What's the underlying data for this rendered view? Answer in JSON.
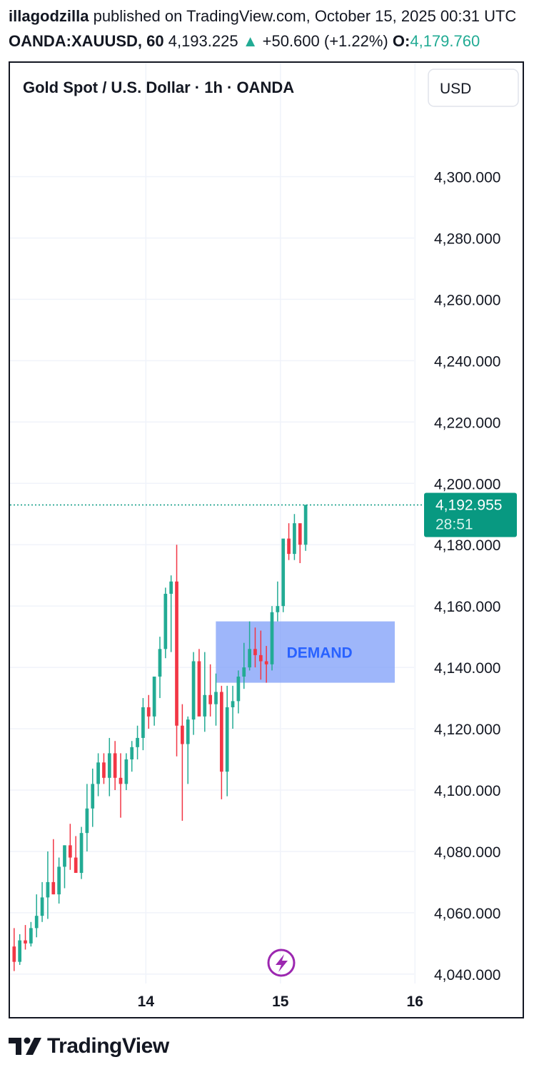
{
  "header": {
    "author": "illagodzilla",
    "published_text": " published on TradingView.com, October 15, 2025 00:31 UTC",
    "symbol": "OANDA:XAUUSD, 60",
    "price": "4,193.225",
    "change_arrow": "▲",
    "change": "+50.600 (+1.22%)",
    "open_label": "O:",
    "open_value": "4,179.760"
  },
  "chart_data": {
    "type": "candlestick",
    "title": "Gold Spot / U.S. Dollar · 1h · OANDA",
    "currency_button": "USD",
    "y_ticks": [
      "4,300.000",
      "4,280.000",
      "4,260.000",
      "4,240.000",
      "4,220.000",
      "4,200.000",
      "4,180.000",
      "4,160.000",
      "4,140.000",
      "4,120.000",
      "4,100.000",
      "4,080.000",
      "4,060.000",
      "4,040.000"
    ],
    "y_tick_values": [
      4300,
      4280,
      4260,
      4240,
      4220,
      4200,
      4180,
      4160,
      4140,
      4120,
      4100,
      4080,
      4060,
      4040
    ],
    "x_ticks": [
      "14",
      "15",
      "16"
    ],
    "x_tick_times": [
      14,
      15,
      16
    ],
    "ylim": [
      4026,
      4332
    ],
    "xlim": [
      12.99,
      16.8
    ],
    "last_price": {
      "value": 4192.955,
      "label": "4,192.955",
      "countdown": "28:51"
    },
    "zone": {
      "label": "DEMAND",
      "from_time": 14.52,
      "to_time": 15.85,
      "top": 4155,
      "bottom": 4135
    },
    "colors": {
      "up": "#22ab94",
      "down": "#f23645",
      "zone": "#7d9ef8",
      "zone_text": "#2962ff",
      "grid": "#f0f3fa",
      "last_price": "#089981"
    },
    "candles_start_day": 13.0,
    "candle_hours": 1,
    "candles": [
      [
        4049,
        4055,
        4041,
        4044
      ],
      [
        4044,
        4053,
        4043,
        4051
      ],
      [
        4051,
        4056,
        4048,
        4050
      ],
      [
        4050,
        4057,
        4049,
        4055
      ],
      [
        4055,
        4066,
        4052,
        4059
      ],
      [
        4059,
        4070,
        4057,
        4065
      ],
      [
        4065,
        4080,
        4058,
        4070
      ],
      [
        4070,
        4084,
        4066,
        4066
      ],
      [
        4066,
        4078,
        4063,
        4075
      ],
      [
        4075,
        4082,
        4068,
        4082
      ],
      [
        4082,
        4089,
        4074,
        4078
      ],
      [
        4078,
        4085,
        4073,
        4073
      ],
      [
        4073,
        4088,
        4071,
        4086
      ],
      [
        4086,
        4102,
        4080,
        4094
      ],
      [
        4094,
        4107,
        4088,
        4102
      ],
      [
        4102,
        4112,
        4098,
        4109
      ],
      [
        4109,
        4112,
        4102,
        4104
      ],
      [
        4104,
        4117,
        4098,
        4112
      ],
      [
        4112,
        4116,
        4100,
        4104
      ],
      [
        4104,
        4112,
        4091,
        4102
      ],
      [
        4102,
        4112,
        4100,
        4110
      ],
      [
        4110,
        4116,
        4106,
        4114
      ],
      [
        4114,
        4121,
        4110,
        4117
      ],
      [
        4117,
        4130,
        4113,
        4127
      ],
      [
        4127,
        4131,
        4120,
        4124
      ],
      [
        4124,
        4135,
        4121,
        4137
      ],
      [
        4137,
        4150,
        4130,
        4146
      ],
      [
        4146,
        4166,
        4143,
        4164
      ],
      [
        4164,
        4170,
        4145,
        4168
      ],
      [
        4168,
        4180,
        4111,
        4121
      ],
      [
        4121,
        4128,
        4090,
        4115
      ],
      [
        4115,
        4124,
        4102,
        4123
      ],
      [
        4123,
        4145,
        4118,
        4142
      ],
      [
        4142,
        4146,
        4125,
        4124
      ],
      [
        4124,
        4145,
        4119,
        4131
      ],
      [
        4131,
        4141,
        4124,
        4128
      ],
      [
        4128,
        4138,
        4121,
        4132
      ],
      [
        4132,
        4134,
        4097,
        4106
      ],
      [
        4106,
        4134,
        4098,
        4127
      ],
      [
        4127,
        4134,
        4120,
        4129
      ],
      [
        4129,
        4139,
        4125,
        4137
      ],
      [
        4137,
        4148,
        4133,
        4140
      ],
      [
        4140,
        4155,
        4139,
        4146
      ],
      [
        4146,
        4153,
        4140,
        4144
      ],
      [
        4144,
        4152,
        4136,
        4142
      ],
      [
        4142,
        4147,
        4135,
        4141
      ],
      [
        4141,
        4160,
        4139,
        4158
      ],
      [
        4158,
        4168,
        4155,
        4160
      ],
      [
        4160,
        4180,
        4158,
        4182
      ],
      [
        4182,
        4187,
        4175,
        4177
      ],
      [
        4177,
        4190,
        4175,
        4187
      ],
      [
        4187,
        4186,
        4174,
        4180
      ],
      [
        4180,
        4193,
        4178,
        4193
      ]
    ]
  }
}
